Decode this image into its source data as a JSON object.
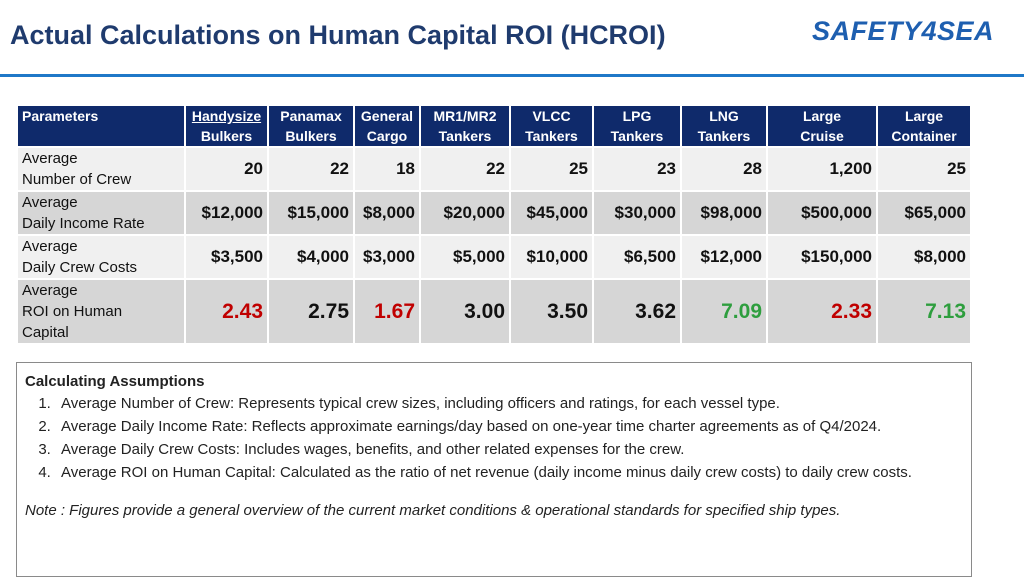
{
  "header": {
    "title": "Actual Calculations on Human Capital ROI (HCROI)",
    "logo_text": "SAFETY4SEA"
  },
  "table": {
    "columns": [
      {
        "line1": "Parameters",
        "line2": ""
      },
      {
        "line1": "Handysize",
        "line2": "Bulkers"
      },
      {
        "line1": "Panamax",
        "line2": "Bulkers"
      },
      {
        "line1": "General",
        "line2": "Cargo"
      },
      {
        "line1": "MR1/MR2",
        "line2": "Tankers"
      },
      {
        "line1": "VLCC",
        "line2": "Tankers"
      },
      {
        "line1": "LPG",
        "line2": "Tankers"
      },
      {
        "line1": "LNG",
        "line2": "Tankers"
      },
      {
        "line1": "Large",
        "line2": "Cruise"
      },
      {
        "line1": "Large",
        "line2": "Container"
      }
    ],
    "rows": [
      {
        "label": [
          "Average",
          "Number of Crew"
        ],
        "values": [
          "20",
          "22",
          "18",
          "22",
          "25",
          "23",
          "28",
          "1,200",
          "25"
        ]
      },
      {
        "label": [
          "Average",
          "Daily Income Rate"
        ],
        "values": [
          "$12,000",
          "$15,000",
          "$8,000",
          "$20,000",
          "$45,000",
          "$30,000",
          "$98,000",
          "$500,000",
          "$65,000"
        ]
      },
      {
        "label": [
          "Average",
          "Daily Crew Costs"
        ],
        "values": [
          "$3,500",
          "$4,000",
          "$3,000",
          "$5,000",
          "$10,000",
          "$6,500",
          "$12,000",
          "$150,000",
          "$8,000"
        ]
      },
      {
        "label": [
          "Average",
          "ROI on Human",
          "Capital"
        ],
        "values": [
          "2.43",
          "2.75",
          "1.67",
          "3.00",
          "3.50",
          "3.62",
          "7.09",
          "2.33",
          "7.13"
        ],
        "value_colors": [
          "#c00000",
          "#111111",
          "#c00000",
          "#111111",
          "#111111",
          "#111111",
          "#2e9e3e",
          "#c00000",
          "#2e9e3e"
        ]
      }
    ]
  },
  "assumptions": {
    "heading": "Calculating Assumptions",
    "items": [
      "Average Number of Crew: Represents typical crew sizes, including officers and ratings, for each vessel type.",
      "Average Daily Income Rate: Reflects approximate earnings/day based on one-year time charter agreements as of Q4/2024.",
      "Average Daily Crew Costs: Includes wages, benefits, and other related expenses for the crew.",
      "Average ROI on Human Capital: Calculated as the ratio of net revenue (daily income minus daily crew costs) to daily crew costs."
    ],
    "note": "Note : Figures provide a general overview of the current market conditions & operational standards for specified ship types."
  }
}
